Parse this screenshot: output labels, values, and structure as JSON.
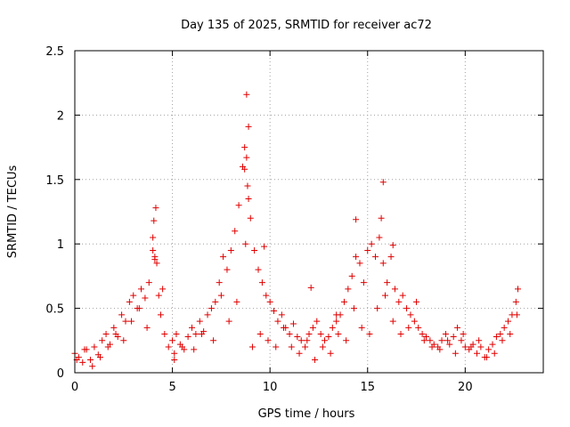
{
  "chart_data": {
    "type": "scatter",
    "title": "Day 135 of 2025, SRMTID for receiver ac72",
    "xlabel": "GPS time / hours",
    "ylabel": "SRMTID / TECUs",
    "xlim": [
      0,
      24
    ],
    "ylim": [
      0,
      2.5
    ],
    "xticks": [
      0,
      5,
      10,
      15,
      20
    ],
    "yticks": [
      0,
      0.5,
      1,
      1.5,
      2,
      2.5
    ],
    "xtick_labels": [
      "0",
      "5",
      "10",
      "15",
      "20"
    ],
    "ytick_labels": [
      "0",
      "0.5",
      "1",
      "1.5",
      "2",
      "2.5"
    ],
    "grid": true,
    "marker": "+",
    "series": [
      {
        "name": "SRMTID",
        "color": "#e00000",
        "x": [
          0.0,
          0.2,
          0.4,
          0.6,
          0.8,
          1.0,
          1.2,
          1.4,
          1.6,
          1.8,
          2.0,
          2.2,
          2.4,
          2.6,
          2.8,
          3.0,
          3.2,
          3.4,
          3.6,
          3.8,
          4.0,
          4.05,
          4.1,
          4.2,
          4.3,
          4.4,
          4.6,
          4.8,
          5.0,
          5.2,
          5.4,
          5.6,
          5.8,
          6.0,
          6.2,
          6.4,
          6.6,
          6.8,
          7.0,
          7.2,
          7.4,
          7.6,
          7.8,
          8.0,
          8.2,
          8.4,
          8.6,
          8.7,
          8.8,
          8.85,
          8.9,
          9.0,
          9.2,
          9.4,
          9.6,
          9.8,
          10.0,
          10.2,
          10.4,
          10.6,
          10.8,
          11.0,
          11.2,
          11.4,
          11.6,
          11.8,
          12.0,
          12.2,
          12.4,
          12.6,
          12.8,
          13.0,
          13.2,
          13.4,
          13.6,
          13.8,
          14.0,
          14.2,
          14.4,
          14.6,
          14.8,
          15.0,
          15.2,
          15.4,
          15.6,
          15.7,
          15.8,
          16.0,
          16.2,
          16.4,
          16.6,
          16.8,
          17.0,
          17.2,
          17.4,
          17.6,
          17.8,
          18.0,
          18.2,
          18.4,
          18.6,
          18.8,
          19.0,
          19.2,
          19.4,
          19.6,
          19.8,
          20.0,
          20.2,
          20.4,
          20.6,
          20.8,
          21.0,
          21.2,
          21.4,
          21.6,
          21.8,
          22.0,
          22.2,
          22.4,
          22.6,
          22.7,
          0.1,
          0.5,
          0.9,
          1.3,
          1.7,
          2.1,
          2.5,
          2.9,
          3.3,
          3.7,
          4.15,
          4.5,
          5.1,
          5.5,
          6.1,
          6.5,
          7.1,
          7.5,
          7.9,
          8.3,
          8.75,
          9.1,
          9.5,
          9.9,
          10.3,
          10.7,
          11.1,
          11.5,
          11.9,
          12.3,
          12.7,
          13.1,
          13.5,
          13.9,
          14.3,
          14.7,
          15.1,
          15.5,
          15.9,
          16.3,
          16.7,
          17.1,
          17.5,
          17.9,
          18.3,
          18.7,
          19.1,
          19.5,
          19.9,
          20.3,
          20.7,
          21.1,
          21.5,
          21.9,
          22.3,
          22.65,
          4.0,
          4.1,
          8.8,
          8.9,
          14.4,
          15.8,
          16.3,
          8.7,
          9.7,
          12.1,
          13.4,
          5.1
        ],
        "y": [
          0.15,
          0.12,
          0.08,
          0.18,
          0.1,
          0.2,
          0.14,
          0.25,
          0.3,
          0.22,
          0.35,
          0.28,
          0.45,
          0.4,
          0.55,
          0.6,
          0.5,
          0.65,
          0.58,
          0.7,
          1.05,
          1.18,
          0.9,
          0.85,
          0.6,
          0.45,
          0.3,
          0.2,
          0.25,
          0.3,
          0.22,
          0.18,
          0.28,
          0.35,
          0.3,
          0.4,
          0.32,
          0.45,
          0.5,
          0.55,
          0.7,
          0.9,
          0.8,
          0.95,
          1.1,
          1.3,
          1.6,
          1.75,
          1.67,
          1.45,
          1.35,
          1.2,
          0.95,
          0.8,
          0.7,
          0.6,
          0.55,
          0.48,
          0.4,
          0.45,
          0.35,
          0.3,
          0.38,
          0.28,
          0.25,
          0.2,
          0.3,
          0.35,
          0.4,
          0.3,
          0.25,
          0.28,
          0.35,
          0.4,
          0.45,
          0.55,
          0.65,
          0.75,
          0.9,
          0.85,
          0.7,
          0.95,
          1.0,
          0.9,
          1.05,
          1.2,
          0.85,
          0.7,
          0.9,
          0.65,
          0.55,
          0.6,
          0.5,
          0.45,
          0.4,
          0.35,
          0.3,
          0.28,
          0.25,
          0.22,
          0.2,
          0.25,
          0.3,
          0.22,
          0.28,
          0.35,
          0.25,
          0.2,
          0.18,
          0.22,
          0.15,
          0.2,
          0.12,
          0.18,
          0.22,
          0.28,
          0.3,
          0.35,
          0.4,
          0.45,
          0.55,
          0.65,
          0.1,
          0.18,
          0.05,
          0.12,
          0.2,
          0.3,
          0.25,
          0.4,
          0.5,
          0.35,
          1.28,
          0.65,
          0.15,
          0.2,
          0.18,
          0.3,
          0.25,
          0.6,
          0.4,
          0.55,
          1.0,
          0.2,
          0.3,
          0.25,
          0.2,
          0.35,
          0.2,
          0.15,
          0.25,
          0.1,
          0.2,
          0.15,
          0.3,
          0.25,
          0.5,
          0.35,
          0.3,
          0.5,
          0.6,
          0.4,
          0.3,
          0.35,
          0.55,
          0.25,
          0.2,
          0.18,
          0.25,
          0.15,
          0.3,
          0.2,
          0.25,
          0.12,
          0.15,
          0.25,
          0.3,
          0.45,
          0.95,
          0.88,
          2.16,
          1.91,
          1.19,
          1.48,
          0.99,
          1.58,
          0.98,
          0.66,
          0.45,
          0.1
        ]
      }
    ]
  }
}
